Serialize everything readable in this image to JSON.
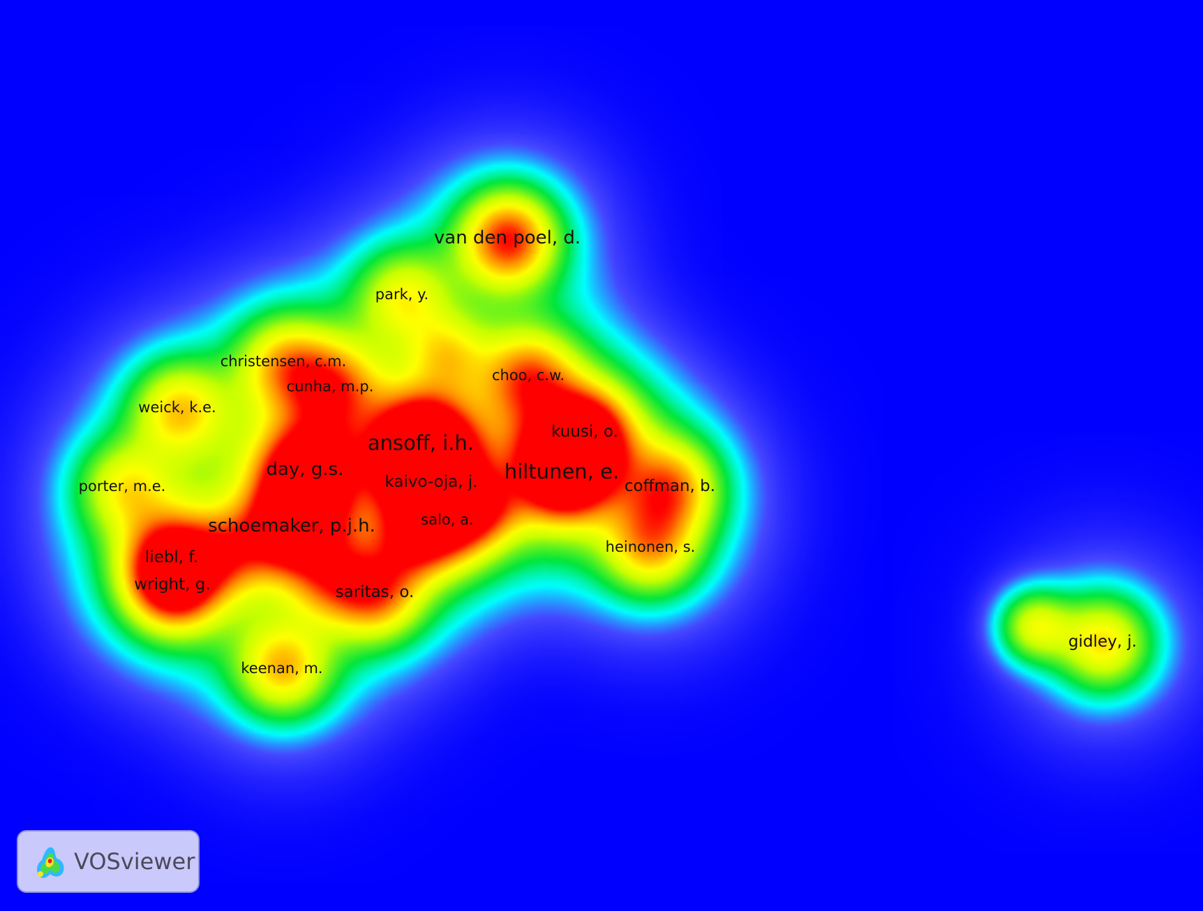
{
  "app": {
    "name": "VOSviewer"
  },
  "colors": {
    "background": "#0000ff"
  },
  "diagram": {
    "type": "density-map",
    "items": [
      {
        "label": "van den poel, d.",
        "density": 0.78
      },
      {
        "label": "park, y.",
        "density": 0.42
      },
      {
        "label": "christensen, c.m.",
        "density": 0.45
      },
      {
        "label": "cunha, m.p.",
        "density": 0.5
      },
      {
        "label": "choo, c.w.",
        "density": 0.55
      },
      {
        "label": "weick, k.e.",
        "density": 0.5
      },
      {
        "label": "ansoff, i.h.",
        "density": 1.0
      },
      {
        "label": "kuusi, o.",
        "density": 0.75
      },
      {
        "label": "day, g.s.",
        "density": 0.82
      },
      {
        "label": "hiltunen, e.",
        "density": 0.95
      },
      {
        "label": "kaivo-oja, j.",
        "density": 0.68
      },
      {
        "label": "porter, m.e.",
        "density": 0.4
      },
      {
        "label": "coffman, b.",
        "density": 0.55
      },
      {
        "label": "schoemaker, p.j.h.",
        "density": 0.85
      },
      {
        "label": "salo, a.",
        "density": 0.6
      },
      {
        "label": "liebl, f.",
        "density": 0.6
      },
      {
        "label": "heinonen, s.",
        "density": 0.5
      },
      {
        "label": "wright, g.",
        "density": 0.68
      },
      {
        "label": "saritas, o.",
        "density": 0.6
      },
      {
        "label": "keenan, m.",
        "density": 0.55
      },
      {
        "label": "gidley, j.",
        "density": 0.55
      }
    ]
  }
}
